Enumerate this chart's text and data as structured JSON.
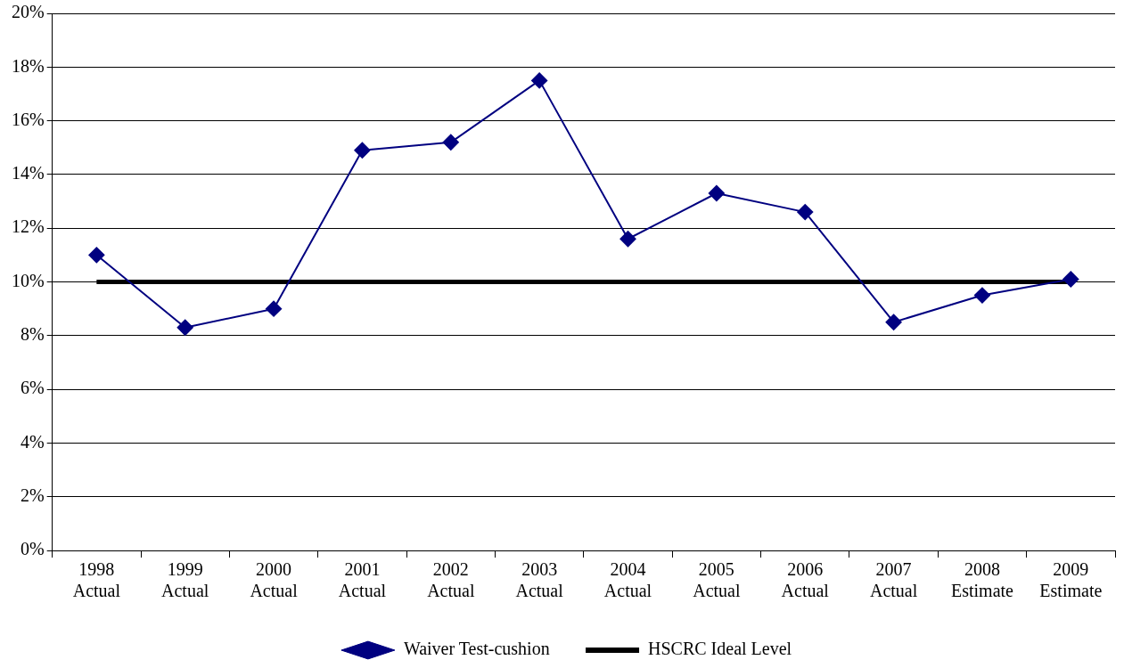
{
  "chart_data": {
    "type": "line",
    "categories": [
      "1998\nActual",
      "1999\nActual",
      "2000\nActual",
      "2001\nActual",
      "2002\nActual",
      "2003\nActual",
      "2004\nActual",
      "2005\nActual",
      "2006\nActual",
      "2007\nActual",
      "2008\nEstimate",
      "2009\nEstimate"
    ],
    "series": [
      {
        "name": "Waiver Test-cushion",
        "color": "#000080",
        "marker": "diamond",
        "values": [
          11.0,
          8.3,
          9.0,
          14.9,
          15.2,
          17.5,
          11.6,
          13.3,
          12.6,
          8.5,
          9.5,
          10.1
        ]
      },
      {
        "name": "HSCRC Ideal Level",
        "color": "#000000",
        "marker": "none",
        "values": [
          10,
          10,
          10,
          10,
          10,
          10,
          10,
          10,
          10,
          10,
          10,
          10
        ]
      }
    ],
    "ylim": [
      0,
      20
    ],
    "yticks": [
      {
        "value": 0,
        "label": "0%"
      },
      {
        "value": 2,
        "label": "2%"
      },
      {
        "value": 4,
        "label": "4%"
      },
      {
        "value": 6,
        "label": "6%"
      },
      {
        "value": 8,
        "label": "8%"
      },
      {
        "value": 10,
        "label": "10%"
      },
      {
        "value": 12,
        "label": "12%"
      },
      {
        "value": 14,
        "label": "14%"
      },
      {
        "value": 16,
        "label": "16%"
      },
      {
        "value": 18,
        "label": "18%"
      },
      {
        "value": 20,
        "label": "20%"
      }
    ],
    "grid": "y",
    "legend": "bottom",
    "line_style": "solid"
  }
}
